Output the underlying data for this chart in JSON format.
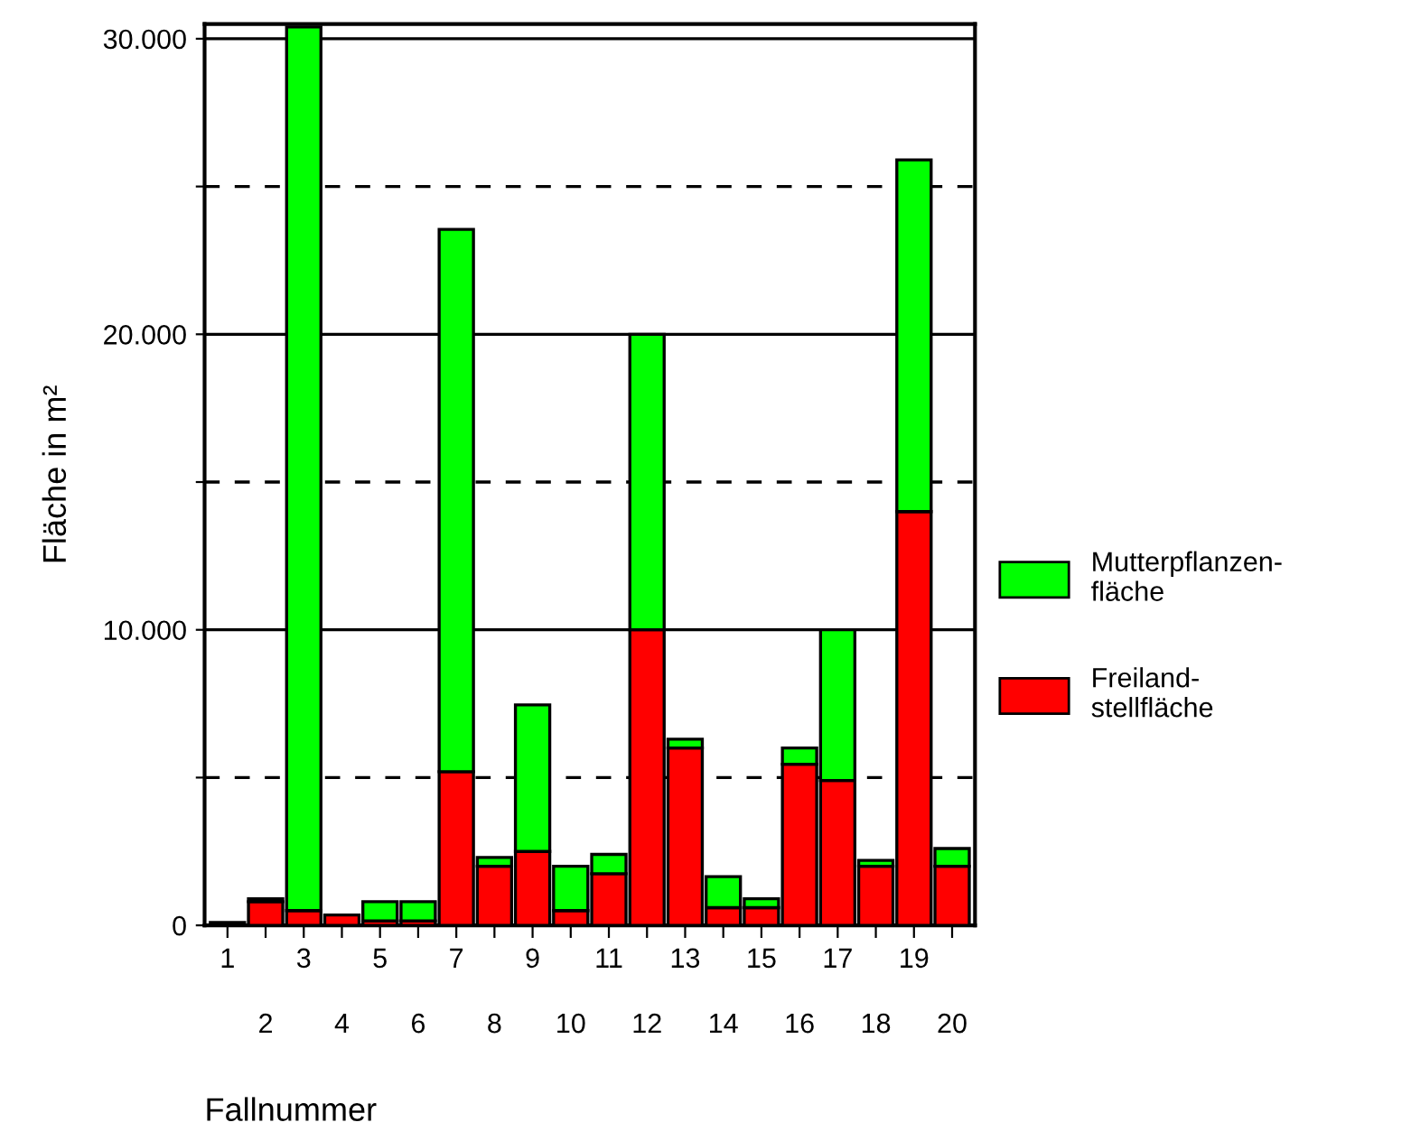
{
  "chart_data": {
    "type": "bar",
    "stacked": true,
    "categories": [
      "1",
      "2",
      "3",
      "4",
      "5",
      "6",
      "7",
      "8",
      "9",
      "10",
      "11",
      "12",
      "13",
      "14",
      "15",
      "16",
      "17",
      "18",
      "19",
      "20"
    ],
    "series": [
      {
        "name": "Freiland-\nstellfläche",
        "color": "#ff0000",
        "values": [
          100,
          800,
          500,
          350,
          150,
          150,
          5200,
          2000,
          2500,
          500,
          1750,
          10000,
          6000,
          600,
          600,
          5450,
          4900,
          2000,
          14000,
          2000
        ]
      },
      {
        "name": "Mutterpflanzen-\nfläche",
        "color": "#00ff00",
        "values": [
          null,
          100,
          29900,
          null,
          650,
          650,
          18350,
          300,
          4960,
          1500,
          650,
          10000,
          300,
          1050,
          300,
          550,
          5100,
          200,
          11900,
          600
        ]
      }
    ],
    "xlabel": "Fallnummer",
    "ylabel": "Fläche in m²",
    "ylim": [
      0,
      30500
    ],
    "yticks": [
      0,
      {
        "value": 5000,
        "label": null
      },
      {
        "value": 10000,
        "label": "10.000"
      },
      {
        "value": 15000,
        "label": null
      },
      {
        "value": 20000,
        "label": "20.000"
      },
      {
        "value": 25000,
        "label": null
      },
      {
        "value": 30000,
        "label": "30.000"
      }
    ],
    "grid": "y",
    "legend": "right"
  }
}
